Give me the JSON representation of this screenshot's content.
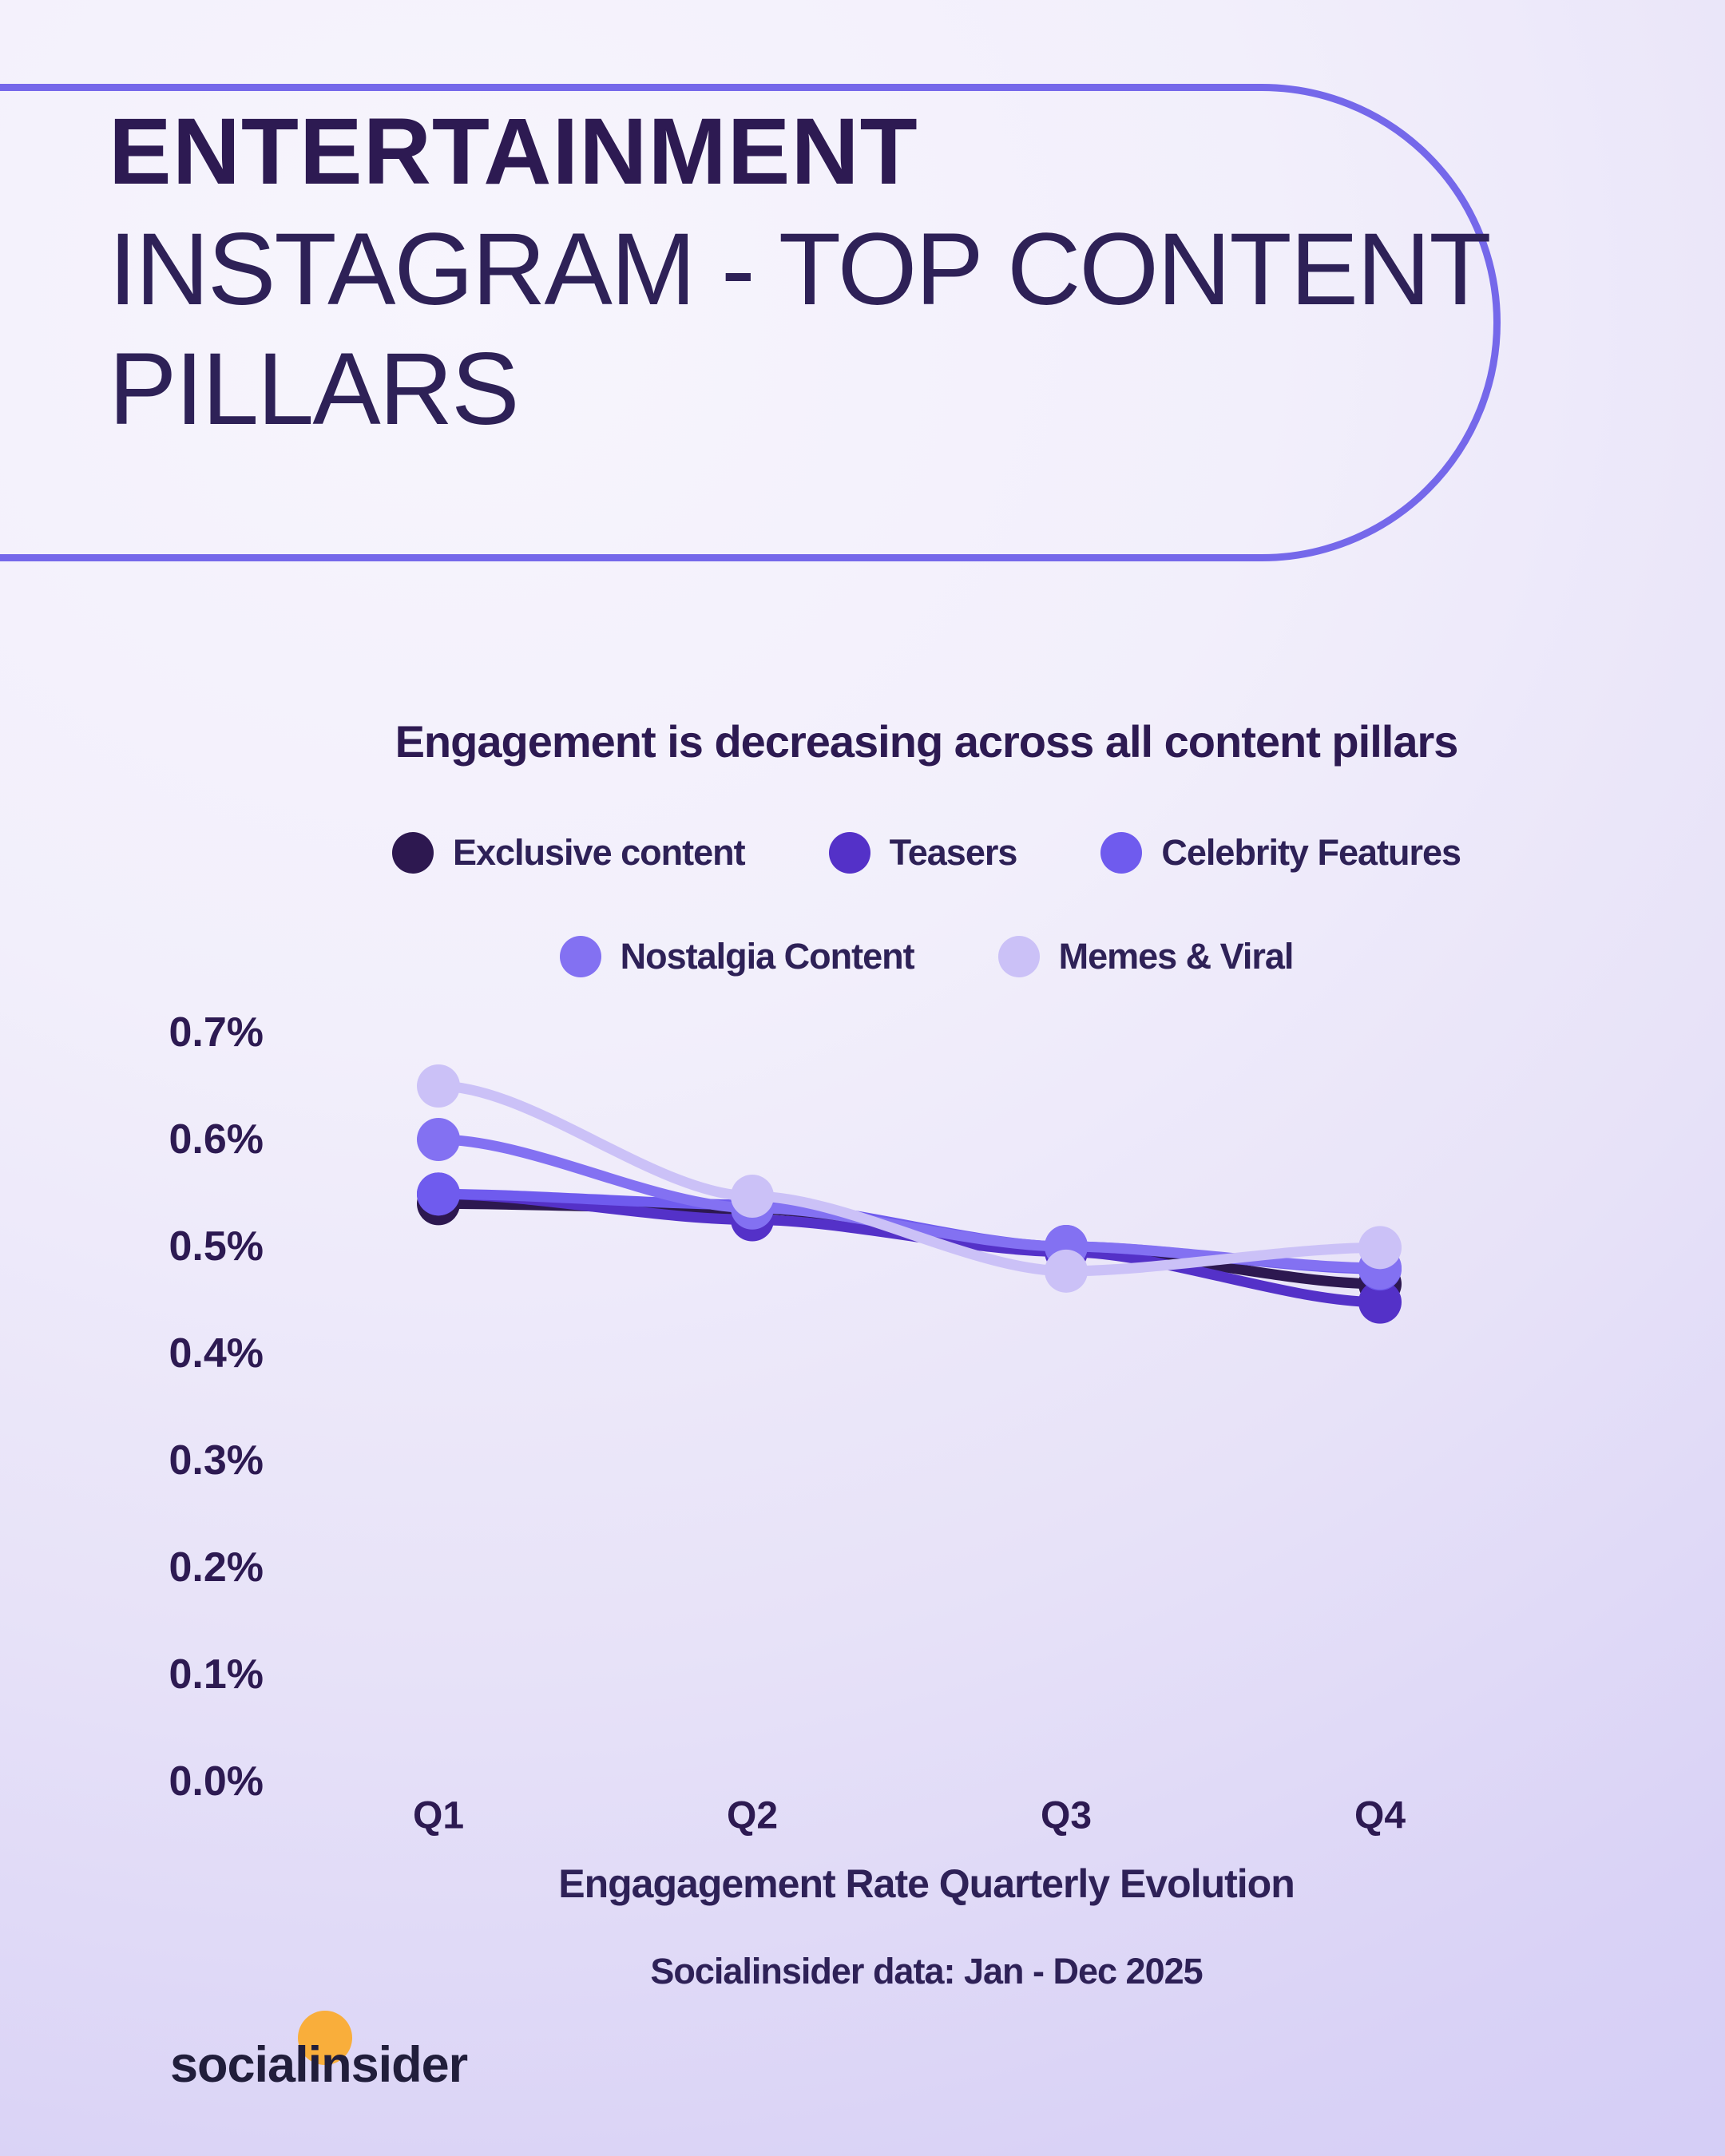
{
  "header": {
    "title_line1": "ENTERTAINMENT",
    "title_line2": "INSTAGRAM - TOP CONTENT",
    "title_line3": "PILLARS"
  },
  "chart": {
    "subtitle": "Engagement is decreasing across all content pillars",
    "x_axis_title": "Engagagement Rate Quarterly Evolution",
    "caption": "Socialinsider data: Jan - Dec 2025"
  },
  "chart_data": {
    "type": "line",
    "title": "Engagement is decreasing across all content pillars",
    "xlabel": "Engagagement Rate Quarterly Evolution",
    "ylabel": "",
    "unit": "%",
    "categories": [
      "Q1",
      "Q2",
      "Q3",
      "Q4"
    ],
    "y_ticks": [
      "0.7%",
      "0.6%",
      "0.5%",
      "0.4%",
      "0.3%",
      "0.2%",
      "0.1%",
      "0.0%"
    ],
    "ylim": [
      0.0,
      0.7
    ],
    "grid": false,
    "legend_position": "top",
    "series": [
      {
        "name": "Exclusive content",
        "color": "#2d1850",
        "values": [
          0.54,
          0.535,
          0.497,
          0.465
        ]
      },
      {
        "name": "Teasers",
        "color": "#5431c8",
        "values": [
          0.549,
          0.525,
          0.495,
          0.448
        ]
      },
      {
        "name": "Celebrity Features",
        "color": "#6f5bee",
        "values": [
          0.549,
          0.539,
          0.5,
          0.479
        ]
      },
      {
        "name": "Nostalgia Content",
        "color": "#8371f2",
        "values": [
          0.6,
          0.536,
          0.5,
          0.48
        ]
      },
      {
        "name": "Memes & Viral",
        "color": "#cbc1f7",
        "values": [
          0.65,
          0.547,
          0.477,
          0.499
        ]
      }
    ]
  },
  "footer": {
    "logo_text": "socialinsider"
  },
  "colors": {
    "accent_outline": "#7568ea",
    "dark_text": "#2d1a52",
    "logo_orange": "#f9ae3b",
    "logo_text": "#211e3b"
  }
}
